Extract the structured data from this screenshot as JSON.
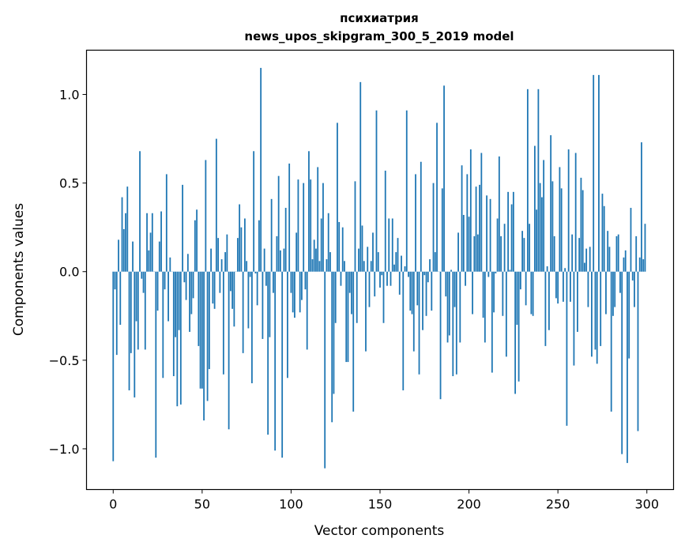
{
  "chart_data": {
    "type": "bar",
    "title": [
      "психиатрия",
      "news_upos_skipgram_300_5_2019 model"
    ],
    "xlabel": "Vector components",
    "ylabel": "Components values",
    "xlim": [
      -15,
      315
    ],
    "ylim": [
      -1.23,
      1.25
    ],
    "xticks": [
      0,
      50,
      100,
      150,
      200,
      250,
      300
    ],
    "xtick_labels": [
      "0",
      "50",
      "100",
      "150",
      "200",
      "250",
      "300"
    ],
    "yticks": [
      -1.0,
      -0.5,
      0.0,
      0.5,
      1.0
    ],
    "ytick_labels": [
      "−1.0",
      "−0.5",
      "0.0",
      "0.5",
      "1.0"
    ],
    "grid": false,
    "color": "#1f77b4",
    "values": [
      -1.07,
      -0.1,
      -0.47,
      0.18,
      -0.3,
      0.42,
      0.24,
      0.33,
      0.48,
      -0.67,
      -0.46,
      0.17,
      -0.71,
      -0.28,
      -0.44,
      0.68,
      -0.04,
      -0.12,
      -0.44,
      0.33,
      0.12,
      0.22,
      0.33,
      0.0,
      -1.05,
      -0.22,
      0.17,
      0.34,
      -0.6,
      -0.1,
      0.55,
      -0.28,
      0.08,
      0.0,
      -0.59,
      -0.37,
      -0.76,
      -0.33,
      -0.75,
      0.49,
      -0.06,
      -0.16,
      0.1,
      -0.34,
      -0.24,
      -0.15,
      0.29,
      0.35,
      -0.42,
      -0.66,
      -0.66,
      -0.84,
      0.63,
      -0.73,
      -0.55,
      0.13,
      -0.18,
      -0.21,
      0.75,
      0.19,
      -0.12,
      0.07,
      -0.58,
      0.11,
      0.21,
      -0.89,
      -0.11,
      -0.21,
      -0.31,
      0.0,
      0.19,
      0.38,
      0.25,
      -0.46,
      0.3,
      0.06,
      -0.32,
      -0.03,
      -0.63,
      0.68,
      -0.01,
      -0.19,
      0.29,
      1.15,
      -0.38,
      0.13,
      -0.08,
      -0.92,
      -0.37,
      0.41,
      -0.12,
      -1.01,
      0.2,
      0.54,
      0.12,
      -1.05,
      0.13,
      0.36,
      -0.6,
      0.61,
      -0.12,
      -0.23,
      -0.26,
      0.22,
      0.52,
      -0.23,
      -0.16,
      0.5,
      -0.1,
      -0.44,
      0.68,
      0.52,
      0.07,
      0.18,
      0.13,
      0.59,
      0.06,
      0.3,
      0.5,
      -1.11,
      0.07,
      0.33,
      0.11,
      -0.85,
      -0.69,
      -0.29,
      0.84,
      0.28,
      -0.08,
      0.25,
      0.06,
      -0.51,
      -0.51,
      -0.12,
      -0.24,
      -0.79,
      0.51,
      -0.29,
      0.13,
      1.07,
      0.26,
      0.06,
      -0.45,
      0.14,
      -0.2,
      0.06,
      0.22,
      -0.14,
      0.91,
      0.11,
      -0.09,
      -0.02,
      -0.29,
      0.57,
      -0.08,
      0.3,
      -0.08,
      0.3,
      0.04,
      0.11,
      0.19,
      -0.13,
      0.09,
      -0.67,
      0.03,
      0.91,
      -0.03,
      -0.22,
      -0.24,
      -0.45,
      0.55,
      -0.19,
      -0.58,
      0.62,
      -0.33,
      -0.02,
      -0.25,
      -0.06,
      0.07,
      -0.22,
      0.5,
      0.11,
      0.84,
      0.0,
      -0.72,
      0.47,
      1.05,
      -0.14,
      -0.4,
      -0.36,
      0.01,
      -0.59,
      -0.2,
      -0.58,
      0.22,
      -0.4,
      0.6,
      0.32,
      -0.08,
      0.55,
      0.31,
      0.69,
      -0.24,
      0.2,
      0.48,
      0.21,
      0.49,
      0.67,
      -0.26,
      -0.4,
      0.43,
      -0.03,
      0.41,
      -0.57,
      -0.23,
      -0.01,
      0.3,
      0.65,
      0.2,
      -0.25,
      0.27,
      -0.48,
      0.45,
      0.01,
      0.38,
      0.45,
      -0.69,
      -0.3,
      -0.62,
      -0.1,
      0.23,
      0.19,
      -0.19,
      1.03,
      0.27,
      -0.24,
      -0.25,
      0.71,
      0.35,
      1.03,
      0.5,
      0.42,
      0.63,
      -0.42,
      0.03,
      -0.33,
      0.77,
      0.51,
      0.2,
      -0.15,
      -0.18,
      0.59,
      0.47,
      -0.17,
      0.02,
      -0.87,
      0.69,
      -0.17,
      0.21,
      -0.53,
      0.67,
      -0.34,
      0.19,
      0.53,
      0.46,
      0.05,
      0.13,
      -0.2,
      0.14,
      -0.48,
      1.11,
      -0.44,
      -0.52,
      1.11,
      -0.42,
      0.44,
      0.37,
      -0.24,
      0.23,
      0.14,
      -0.79,
      -0.25,
      -0.2,
      0.2,
      0.21,
      -0.12,
      -1.03,
      0.08,
      0.12,
      -1.08,
      -0.49,
      0.36,
      -0.05,
      -0.2,
      0.2,
      -0.9,
      0.08,
      0.73,
      0.07,
      0.27
    ]
  }
}
